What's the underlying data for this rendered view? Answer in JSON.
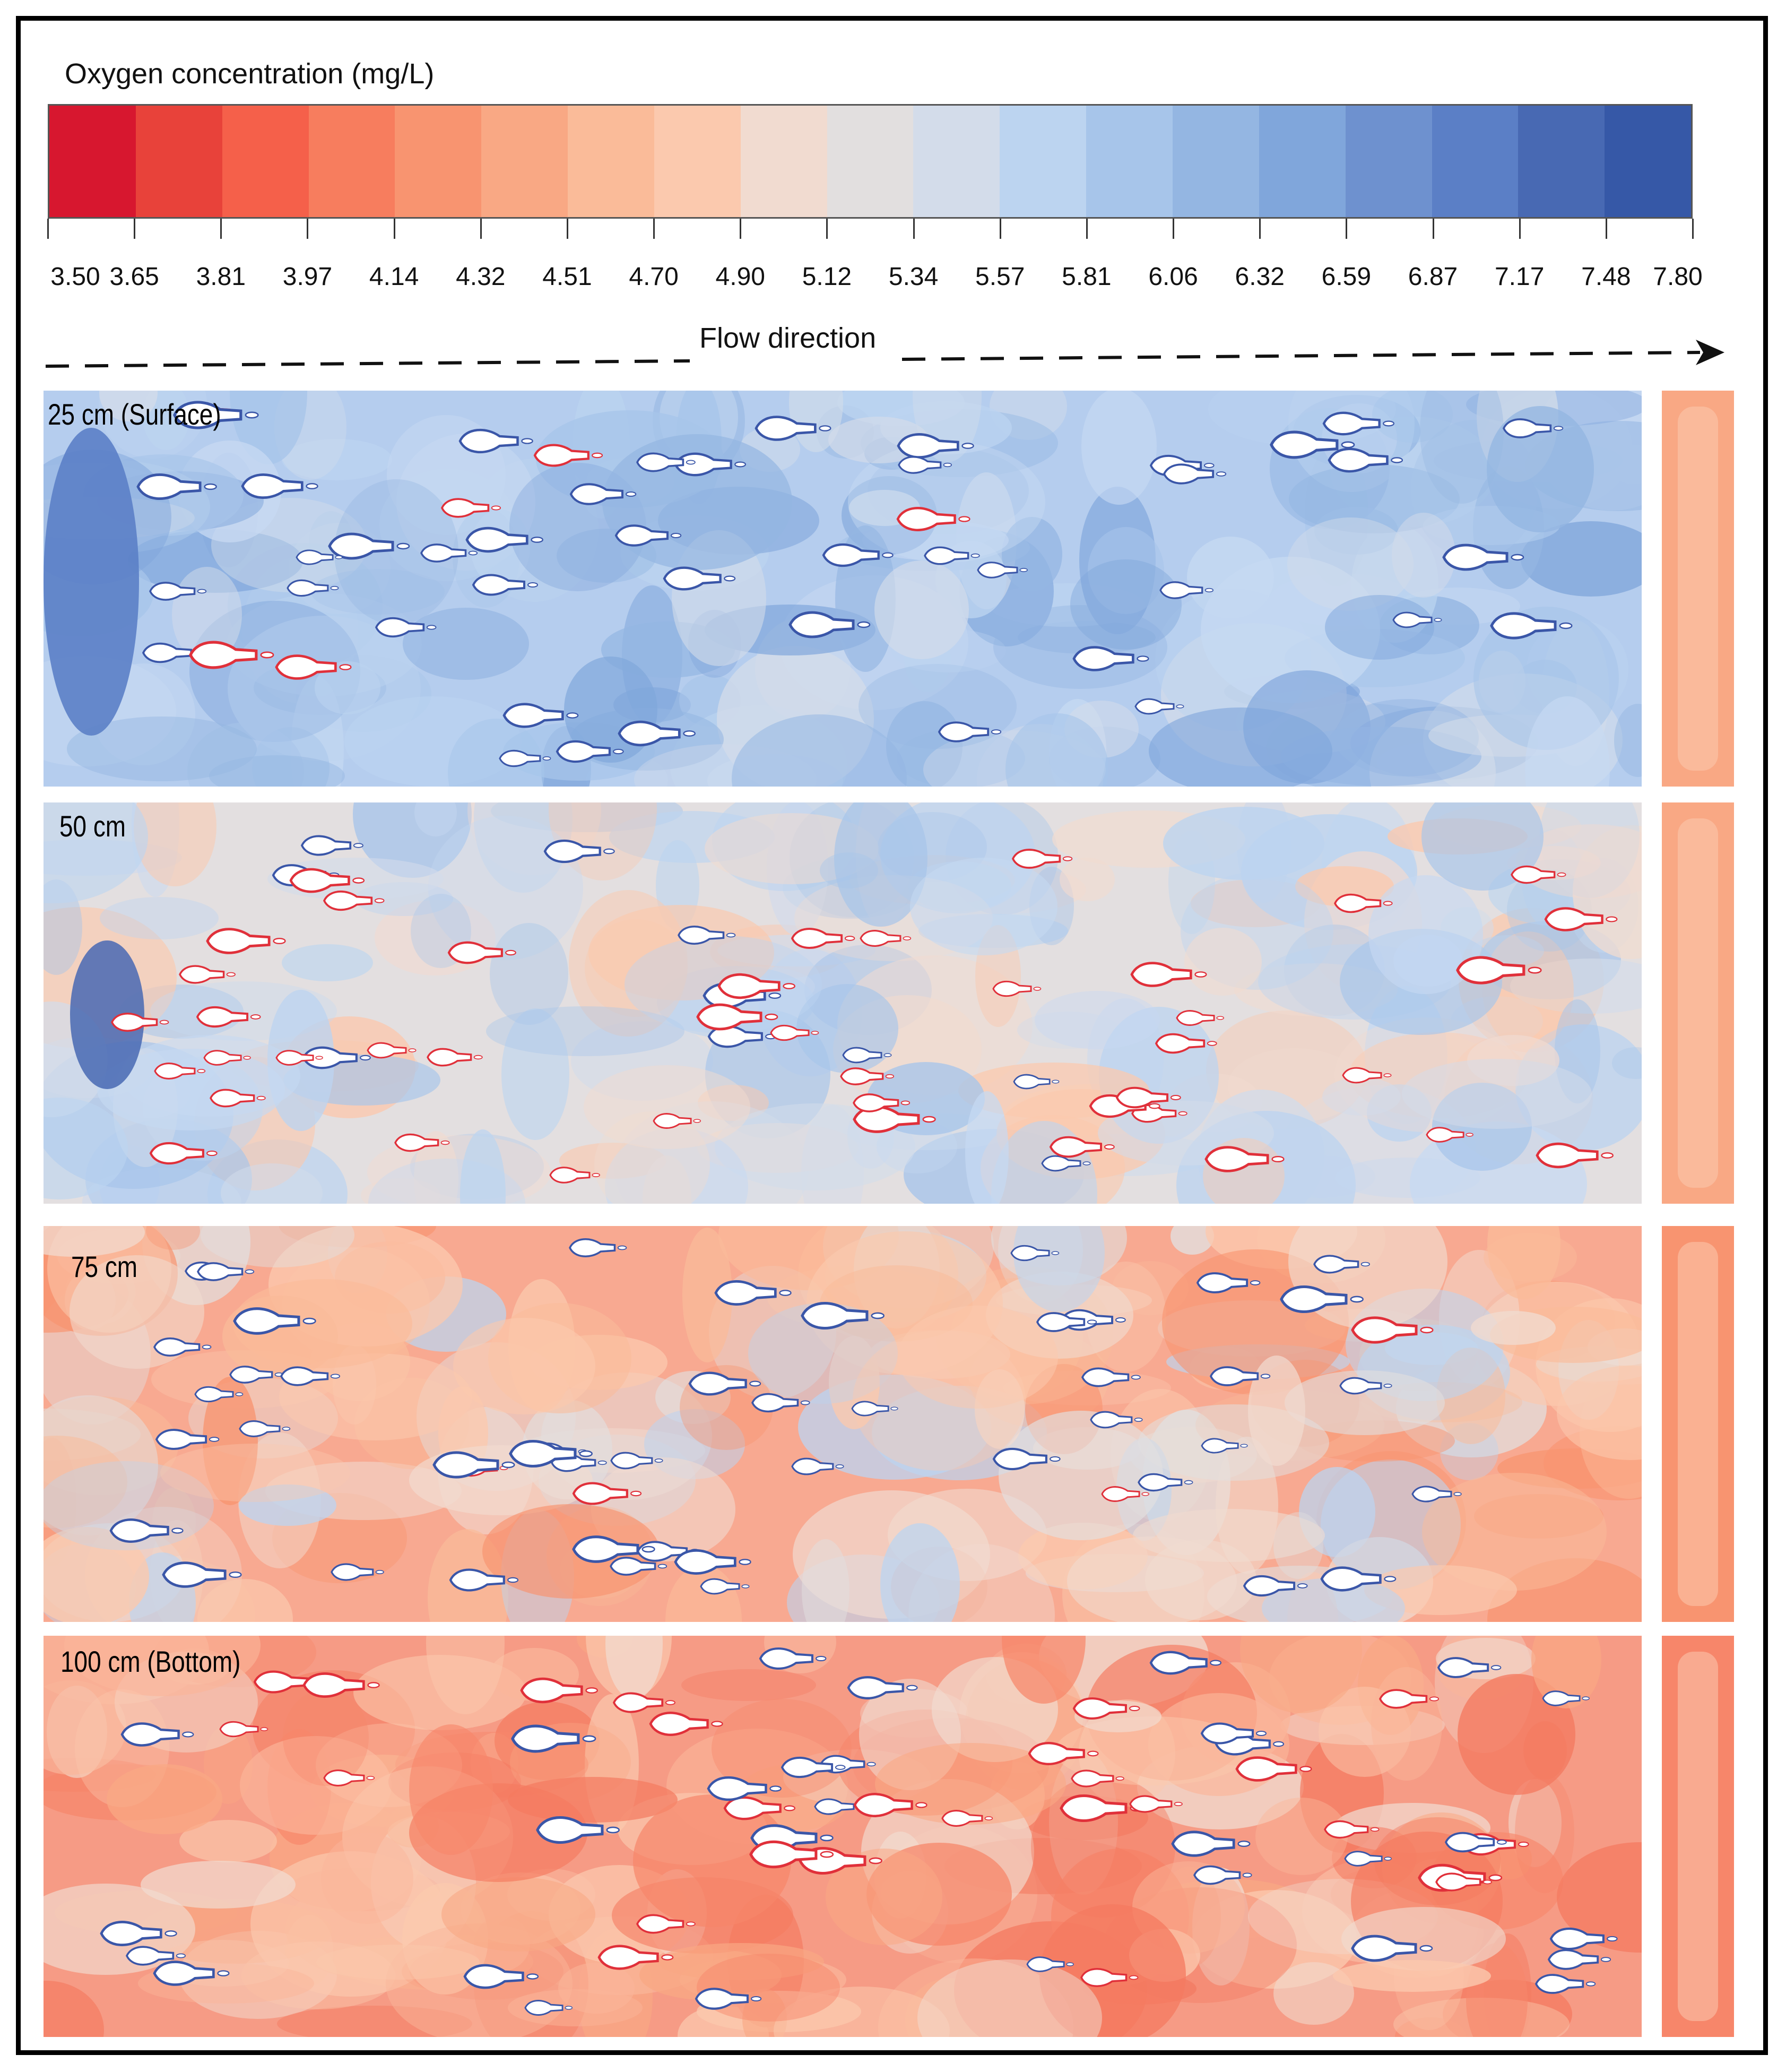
{
  "colorbar": {
    "title": "Oxygen concentration  (mg/L)",
    "ticks": [
      "3.50",
      "3.65",
      "3.81",
      "3.97",
      "4.14",
      "4.32",
      "4.51",
      "4.70",
      "4.90",
      "5.12",
      "5.34",
      "5.57",
      "5.81",
      "6.06",
      "6.32",
      "6.59",
      "6.87",
      "7.17",
      "7.48",
      "7.80"
    ],
    "colors": [
      "#d7172f",
      "#e8423a",
      "#f5604a",
      "#f77d5e",
      "#f89470",
      "#f9a884",
      "#fabb99",
      "#fbc9ae",
      "#f1dbd0",
      "#e2dfdf",
      "#d3dcea",
      "#bcd4f0",
      "#a7c5ea",
      "#94b6e2",
      "#80a6db",
      "#6e91cf",
      "#5b7fc6",
      "#4869b3",
      "#3658a7"
    ]
  },
  "flow": {
    "label": "Flow direction"
  },
  "panels": [
    {
      "label": "25 cm (Surface)",
      "base_color": "#b5cdee"
    },
    {
      "label": "50 cm",
      "base_color": "#e3dfe0"
    },
    {
      "label": "75 cm",
      "base_color": "#f8a991"
    },
    {
      "label": "100 cm (Bottom)",
      "base_color": "#f69b85"
    }
  ]
}
